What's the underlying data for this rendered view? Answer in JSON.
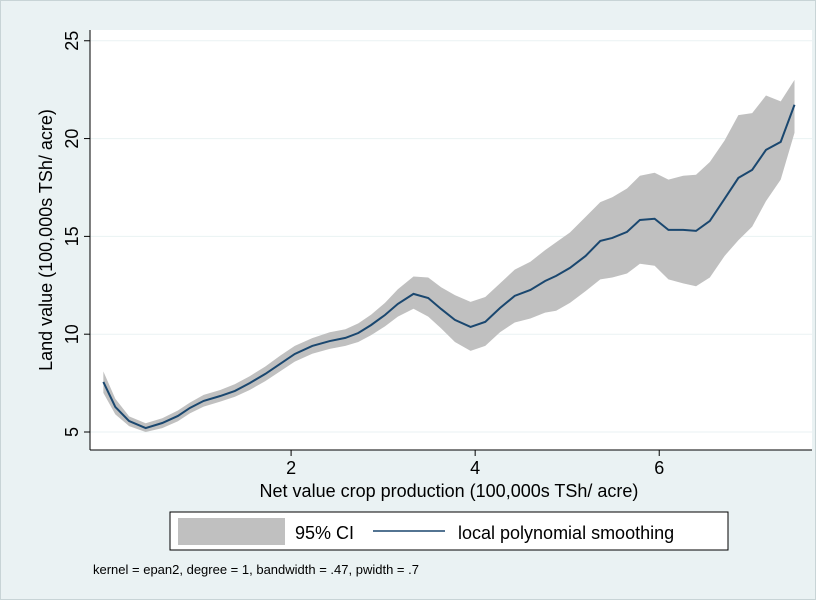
{
  "chart_data": {
    "type": "line",
    "x_label": "Net value crop production (100,000s TSh/ acre)",
    "y_label": "Land value (100,000s TSh/ acre)",
    "note": "kernel = epan2, degree = 1, bandwidth = .47, pwidth = .7",
    "x": [
      -0.04,
      0.09,
      0.24,
      0.42,
      0.6,
      0.77,
      0.9,
      1.05,
      1.23,
      1.39,
      1.55,
      1.72,
      1.88,
      2.04,
      2.23,
      2.42,
      2.59,
      2.73,
      2.87,
      3.02,
      3.16,
      3.33,
      3.49,
      3.63,
      3.78,
      3.95,
      4.11,
      4.27,
      4.43,
      4.6,
      4.76,
      4.88,
      5.03,
      5.2,
      5.36,
      5.49,
      5.65,
      5.79,
      5.95,
      6.1,
      6.26,
      6.4,
      6.55,
      6.71,
      6.86,
      7.01,
      7.16,
      7.32,
      7.47
    ],
    "series": [
      {
        "name": "95% CI",
        "color": "#c0c0c0",
        "low": [
          7.0,
          5.9,
          5.3,
          5.0,
          5.2,
          5.55,
          5.95,
          6.3,
          6.55,
          6.8,
          7.15,
          7.6,
          8.1,
          8.6,
          9.0,
          9.25,
          9.4,
          9.6,
          9.95,
          10.4,
          10.9,
          11.3,
          10.9,
          10.3,
          9.6,
          9.15,
          9.4,
          10.1,
          10.6,
          10.8,
          11.1,
          11.2,
          11.6,
          12.2,
          12.8,
          12.9,
          13.1,
          13.6,
          13.5,
          12.8,
          12.6,
          12.45,
          12.9,
          14.0,
          14.8,
          15.5,
          16.8,
          17.9,
          20.3
        ],
        "high": [
          8.1,
          6.7,
          5.8,
          5.45,
          5.7,
          6.1,
          6.5,
          6.9,
          7.15,
          7.45,
          7.85,
          8.35,
          8.9,
          9.4,
          9.8,
          10.1,
          10.25,
          10.55,
          11.0,
          11.6,
          12.3,
          12.95,
          12.9,
          12.4,
          12.0,
          11.65,
          11.9,
          12.6,
          13.3,
          13.7,
          14.3,
          14.7,
          15.2,
          16.0,
          16.75,
          17.0,
          17.45,
          18.1,
          18.25,
          17.9,
          18.1,
          18.15,
          18.8,
          19.9,
          21.2,
          21.3,
          22.2,
          21.9,
          23.0
        ]
      },
      {
        "name": "local polynomial smoothing",
        "color": "#1a476f",
        "values": [
          7.56,
          6.28,
          5.56,
          5.2,
          5.46,
          5.82,
          6.23,
          6.59,
          6.84,
          7.1,
          7.5,
          7.97,
          8.48,
          8.99,
          9.4,
          9.65,
          9.81,
          10.06,
          10.47,
          10.98,
          11.55,
          12.06,
          11.85,
          11.29,
          10.73,
          10.37,
          10.63,
          11.34,
          11.96,
          12.26,
          12.72,
          12.98,
          13.39,
          14.0,
          14.77,
          14.92,
          15.23,
          15.84,
          15.9,
          15.33,
          15.33,
          15.28,
          15.79,
          16.92,
          17.99,
          18.4,
          19.42,
          19.83,
          21.73
        ]
      }
    ],
    "xlim": [
      -0.185,
      7.66
    ],
    "xticks": [
      2,
      4,
      6
    ],
    "ylim": [
      4.08,
      25.55
    ],
    "yticks": [
      5,
      10,
      15,
      20,
      25
    ],
    "grid": true
  }
}
